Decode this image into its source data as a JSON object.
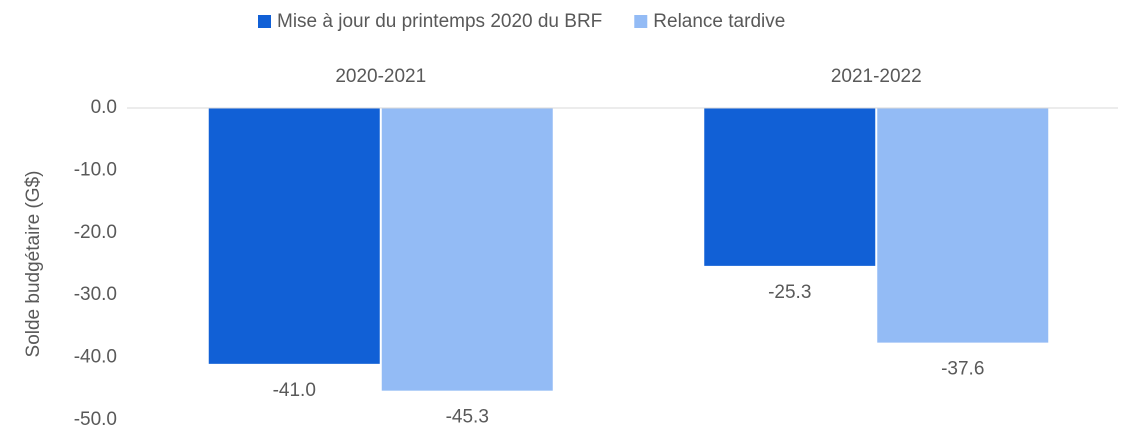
{
  "chart_data": {
    "type": "bar",
    "y_label": "Solde budgétaire (G$)",
    "categories": [
      "2020-2021",
      "2021-2022"
    ],
    "series": [
      {
        "name": "Mise à jour du printemps 2020 du BRF",
        "color": "#1160d6",
        "values": [
          -41.0,
          -25.3
        ],
        "value_labels": [
          "-41.0",
          "-25.3"
        ]
      },
      {
        "name": "Relance tardive",
        "color": "#93bbf5",
        "values": [
          -45.3,
          -37.6
        ],
        "value_labels": [
          "-45.3",
          "-37.6"
        ]
      }
    ],
    "ylim": [
      -50,
      0
    ],
    "yticks": [
      {
        "value": 0,
        "label": "0.0"
      },
      {
        "value": -10,
        "label": "-10.0"
      },
      {
        "value": -20,
        "label": "-20.0"
      },
      {
        "value": -30,
        "label": "-30.0"
      },
      {
        "value": -40,
        "label": "-40.0"
      },
      {
        "value": -50,
        "label": "-50.0"
      }
    ],
    "grid": false,
    "legend": "top"
  }
}
